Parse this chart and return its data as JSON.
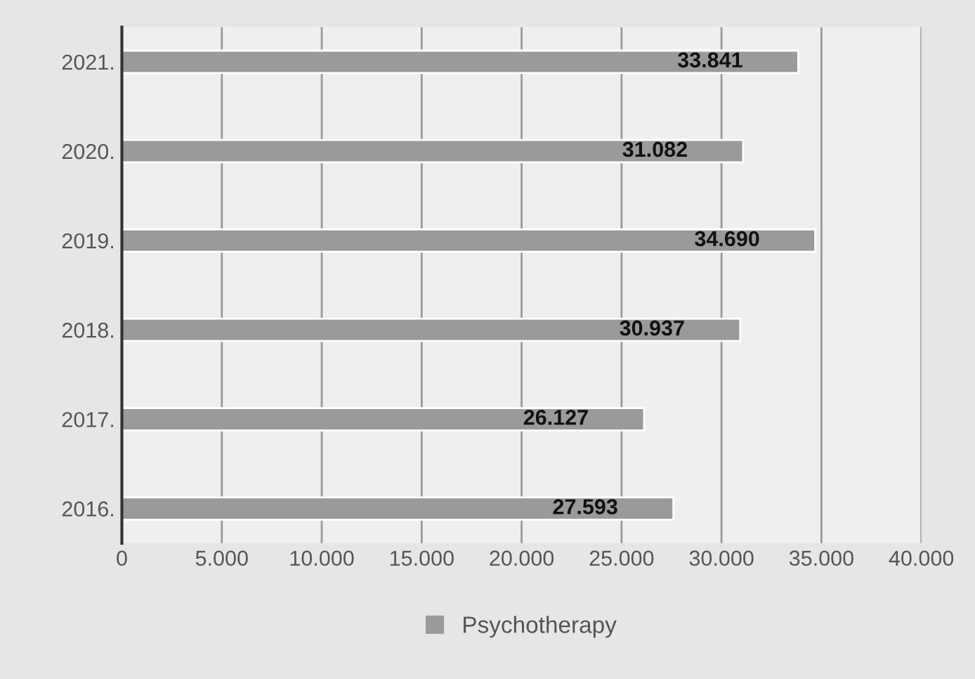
{
  "chart_data": {
    "type": "bar",
    "orientation": "horizontal",
    "categories": [
      "2021.",
      "2020.",
      "2019.",
      "2018.",
      "2017.",
      "2016."
    ],
    "series": [
      {
        "name": "Psychotherapy",
        "color": "#9a9a9a",
        "values": [
          33841,
          31082,
          34690,
          30937,
          26127,
          27593
        ],
        "value_labels": [
          "33.841",
          "31.082",
          "34.690",
          "30.937",
          "26.127",
          "27.593"
        ]
      }
    ],
    "xlim": [
      0,
      40000
    ],
    "xticks": [
      0,
      {
        "value": 5000,
        "label": "5.000"
      },
      {
        "value": 10000,
        "label": "10.000"
      },
      {
        "value": 15000,
        "label": "15.000"
      },
      {
        "value": 20000,
        "label": "20.000"
      },
      {
        "value": 25000,
        "label": "25.000"
      },
      {
        "value": 30000,
        "label": "30.000"
      },
      {
        "value": 35000,
        "label": "35.000"
      },
      {
        "value": 40000,
        "label": "40.000"
      }
    ],
    "grid": "x",
    "legend": "bottom"
  }
}
